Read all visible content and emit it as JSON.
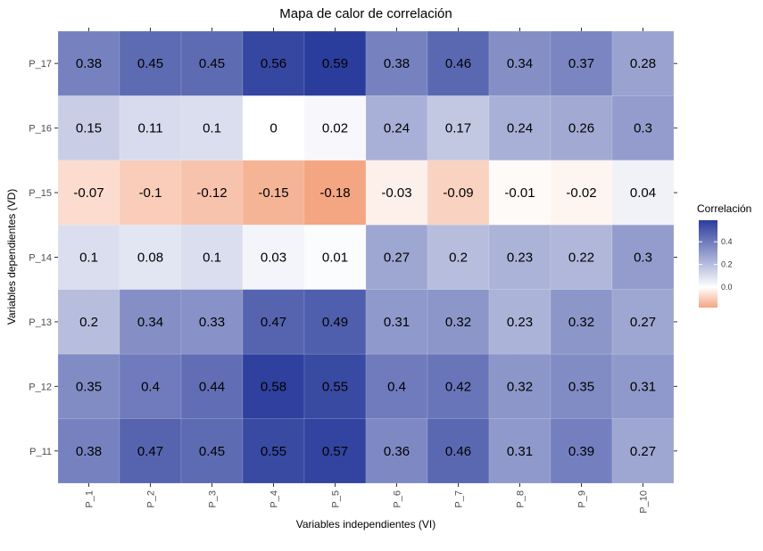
{
  "chart_data": {
    "type": "heatmap",
    "title": "Mapa de calor de correlación",
    "xlabel": "Variables independientes (VI)",
    "ylabel": "Variables dependientes (VD)",
    "x_categories": [
      "P_1",
      "P_2",
      "P_3",
      "P_4",
      "P_5",
      "P_6",
      "P_7",
      "P_8",
      "P_9",
      "P_10"
    ],
    "y_categories": [
      "P_17",
      "P_16",
      "P_15",
      "P_14",
      "P_13",
      "P_12",
      "P_11"
    ],
    "values": [
      [
        0.38,
        0.45,
        0.45,
        0.56,
        0.59,
        0.38,
        0.46,
        0.34,
        0.37,
        0.28
      ],
      [
        0.15,
        0.11,
        0.1,
        0,
        0.02,
        0.24,
        0.17,
        0.24,
        0.26,
        0.3
      ],
      [
        -0.07,
        -0.1,
        -0.12,
        -0.15,
        -0.18,
        -0.03,
        -0.09,
        -0.01,
        -0.02,
        0.04
      ],
      [
        0.1,
        0.08,
        0.1,
        0.03,
        0.01,
        0.27,
        0.2,
        0.23,
        0.22,
        0.3
      ],
      [
        0.2,
        0.34,
        0.33,
        0.47,
        0.49,
        0.31,
        0.32,
        0.23,
        0.32,
        0.27
      ],
      [
        0.35,
        0.4,
        0.44,
        0.58,
        0.55,
        0.4,
        0.42,
        0.32,
        0.35,
        0.31
      ],
      [
        0.38,
        0.47,
        0.45,
        0.55,
        0.57,
        0.36,
        0.46,
        0.31,
        0.39,
        0.27
      ]
    ],
    "legend": {
      "title": "Correlación",
      "ticks": [
        "0.4",
        "0.2",
        "0.0"
      ],
      "tick_values": [
        0.4,
        0.2,
        0.0
      ],
      "min": -0.18,
      "max": 0.59,
      "placement": "right"
    },
    "colors": {
      "low": "#f4a582",
      "mid": "#ffffff",
      "high": "#2b3d9c",
      "plot_background": "#ebebeb",
      "grid": "#ffffff"
    }
  }
}
